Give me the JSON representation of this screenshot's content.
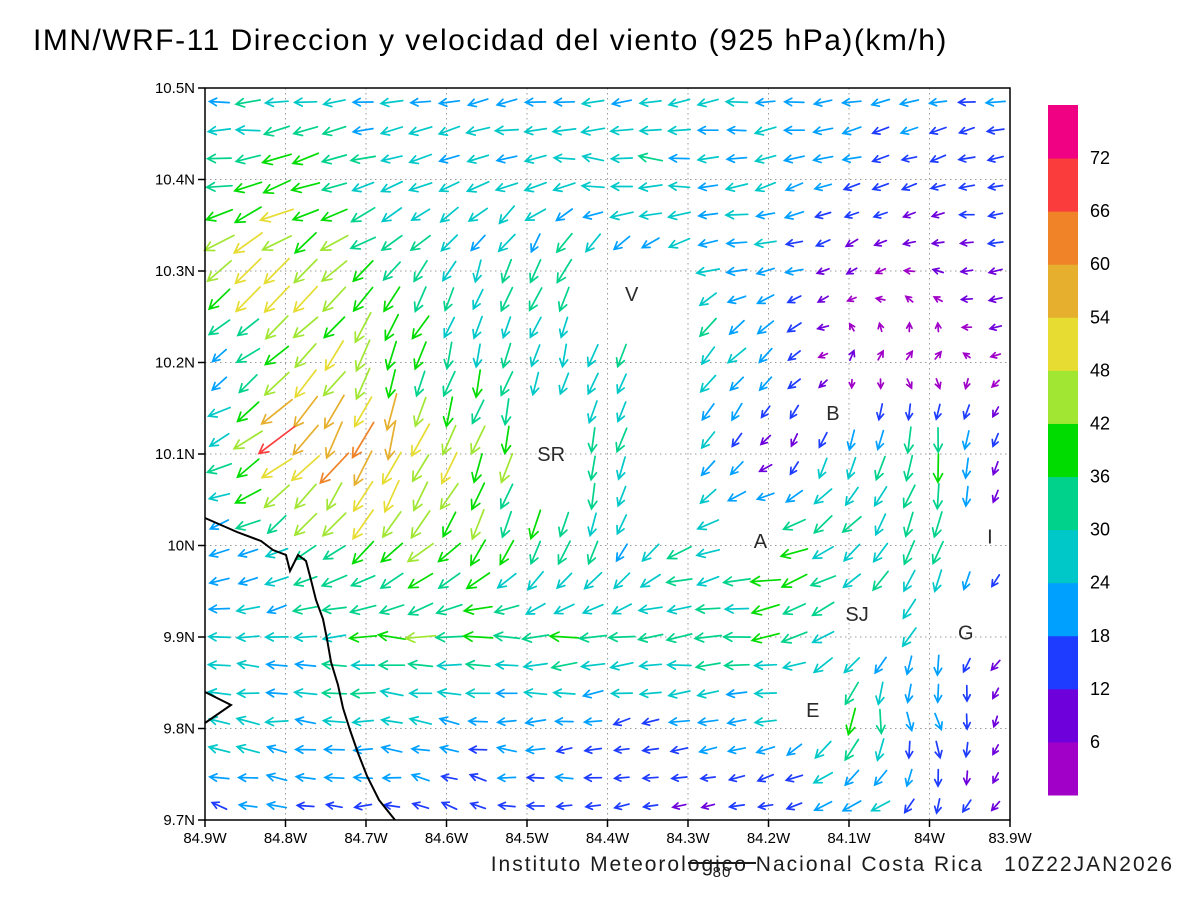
{
  "title": "IMN/WRF-11 Direccion y velocidad del viento (925 hPa)(km/h)",
  "footer": {
    "credit": "Instituto Meteorologico Nacional Costa Rica",
    "datetime": "10Z22JAN2026",
    "ref_vector_label": "80"
  },
  "axes": {
    "lat_ticks": [
      "10.5N",
      "10.4N",
      "10.3N",
      "10.2N",
      "10.1N",
      "10N",
      "9.9N",
      "9.8N",
      "9.7N"
    ],
    "lat_values": [
      10.5,
      10.4,
      10.3,
      10.2,
      10.1,
      10.0,
      9.9,
      9.8,
      9.7
    ],
    "lon_ticks": [
      "84.9W",
      "84.8W",
      "84.7W",
      "84.6W",
      "84.5W",
      "84.4W",
      "84.3W",
      "84.2W",
      "84.1W",
      "84W",
      "83.9W"
    ],
    "lon_values": [
      -84.9,
      -84.8,
      -84.7,
      -84.6,
      -84.5,
      -84.4,
      -84.3,
      -84.2,
      -84.1,
      -84.0,
      -83.9
    ]
  },
  "colorbar": {
    "levels": [
      6,
      12,
      18,
      24,
      30,
      36,
      42,
      48,
      54,
      60,
      66,
      72
    ],
    "colors": [
      "#A000C8",
      "#6E00DC",
      "#1E3CFF",
      "#00A0FF",
      "#00C8C8",
      "#00D28C",
      "#00DC00",
      "#A0E632",
      "#E6DC32",
      "#E6AF2D",
      "#F08228",
      "#FA3C3C",
      "#F00082"
    ]
  },
  "stations": [
    {
      "label": "V",
      "lon": -84.37,
      "lat": 10.275
    },
    {
      "label": "B",
      "lon": -84.12,
      "lat": 10.145
    },
    {
      "label": "SR",
      "lon": -84.47,
      "lat": 10.1
    },
    {
      "label": "A",
      "lon": -84.21,
      "lat": 10.005
    },
    {
      "label": "SJ",
      "lon": -84.09,
      "lat": 9.925
    },
    {
      "label": "G",
      "lon": -83.955,
      "lat": 9.905
    },
    {
      "label": "E",
      "lon": -84.145,
      "lat": 9.82
    },
    {
      "label": "I",
      "lon": -83.925,
      "lat": 10.01
    }
  ],
  "chart_data": {
    "type": "vector_field",
    "variable": "wind direction and speed",
    "units": "km/h",
    "pressure_level": "925 hPa",
    "reference_vector": 80,
    "lon_range": [
      -84.9,
      -83.9
    ],
    "lat_range": [
      9.7,
      10.5
    ],
    "grid_lon": [
      -84.9,
      -84.8,
      -84.7,
      -84.6,
      -84.5,
      -84.4,
      -84.3,
      -84.2,
      -84.1,
      -84.0,
      -83.9
    ],
    "grid_lat": [
      9.7,
      9.8,
      9.9,
      10.0,
      10.1,
      10.2,
      10.3,
      10.4,
      10.5
    ],
    "u": [
      [
        -15,
        -20,
        -15,
        -12,
        -18,
        -14,
        -8,
        -12,
        -28,
        -8,
        -5
      ],
      [
        -25,
        -28,
        -25,
        -22,
        -20,
        -15,
        -20,
        -22,
        -8,
        8,
        -5
      ],
      [
        -25,
        -25,
        -35,
        -38,
        -35,
        -35,
        -32,
        -35,
        -20,
        -10,
        -6
      ],
      [
        -22,
        -25,
        -30,
        -28,
        -12,
        -8,
        -30,
        -35,
        -25,
        -10,
        -5
      ],
      [
        -25,
        -50,
        -20,
        -15,
        -10,
        -8,
        -15,
        -5,
        -8,
        -5,
        -4
      ],
      [
        -12,
        -38,
        -20,
        -10,
        -8,
        -10,
        -20,
        -15,
        2,
        4,
        -5
      ],
      [
        -35,
        -40,
        -30,
        -12,
        -10,
        -15,
        -25,
        -22,
        -6,
        -5,
        -14
      ],
      [
        -35,
        -40,
        -28,
        -25,
        -25,
        -30,
        -25,
        -22,
        -18,
        -12,
        -15
      ],
      [
        -25,
        -26,
        -24,
        -25,
        -26,
        -25,
        -24,
        -23,
        -22,
        -20,
        -20
      ]
    ],
    "v": [
      [
        5,
        3,
        0,
        8,
        0,
        -3,
        -2,
        -4,
        -5,
        -15,
        -4
      ],
      [
        5,
        3,
        0,
        5,
        0,
        -3,
        -5,
        -3,
        -35,
        -18,
        -5
      ],
      [
        0,
        -3,
        0,
        0,
        0,
        -3,
        -3,
        -5,
        -15,
        -25,
        -6
      ],
      [
        -5,
        -15,
        -30,
        -30,
        -35,
        -25,
        -10,
        -8,
        -20,
        -30,
        -5
      ],
      [
        -5,
        -45,
        -55,
        -45,
        -40,
        -30,
        -20,
        -5,
        -28,
        -38,
        -6
      ],
      [
        -10,
        -32,
        -40,
        -30,
        -28,
        -25,
        -25,
        -15,
        6,
        4,
        -3
      ],
      [
        -30,
        -35,
        -25,
        -25,
        -28,
        -30,
        -8,
        -5,
        -4,
        2,
        -4
      ],
      [
        0,
        -10,
        -5,
        -8,
        -10,
        5,
        0,
        -5,
        -5,
        -5,
        0
      ],
      [
        -3,
        -2,
        -3,
        -2,
        -3,
        -2,
        -3,
        -3,
        -2,
        -3,
        -3
      ]
    ],
    "masked_regions": [
      [
        -84.52,
        -84.42,
        10.04,
        10.17
      ],
      [
        -84.37,
        -84.3,
        10.0,
        10.3
      ],
      [
        -84.42,
        -84.32,
        10.22,
        10.32
      ]
    ],
    "coastline": [
      [
        [
          -84.9,
          10.03
        ],
        [
          -84.86,
          10.015
        ],
        [
          -84.83,
          10.005
        ],
        [
          -84.815,
          9.995
        ],
        [
          -84.8,
          9.99
        ],
        [
          -84.795,
          9.972
        ],
        [
          -84.785,
          9.99
        ],
        [
          -84.775,
          9.983
        ],
        [
          -84.768,
          9.962
        ],
        [
          -84.762,
          9.94
        ],
        [
          -84.754,
          9.92
        ],
        [
          -84.749,
          9.898
        ],
        [
          -84.744,
          9.873
        ],
        [
          -84.735,
          9.848
        ],
        [
          -84.729,
          9.822
        ],
        [
          -84.72,
          9.798
        ],
        [
          -84.71,
          9.773
        ],
        [
          -84.699,
          9.748
        ],
        [
          -84.684,
          9.722
        ],
        [
          -84.664,
          9.7
        ]
      ],
      [
        [
          -84.9,
          9.84
        ],
        [
          -84.868,
          9.826
        ],
        [
          -84.9,
          9.806
        ]
      ]
    ]
  },
  "style_colors": {
    "grid": "#9a9a9a",
    "frame": "#000000",
    "coast": "#000000",
    "station_text": "#2a2a2a"
  }
}
